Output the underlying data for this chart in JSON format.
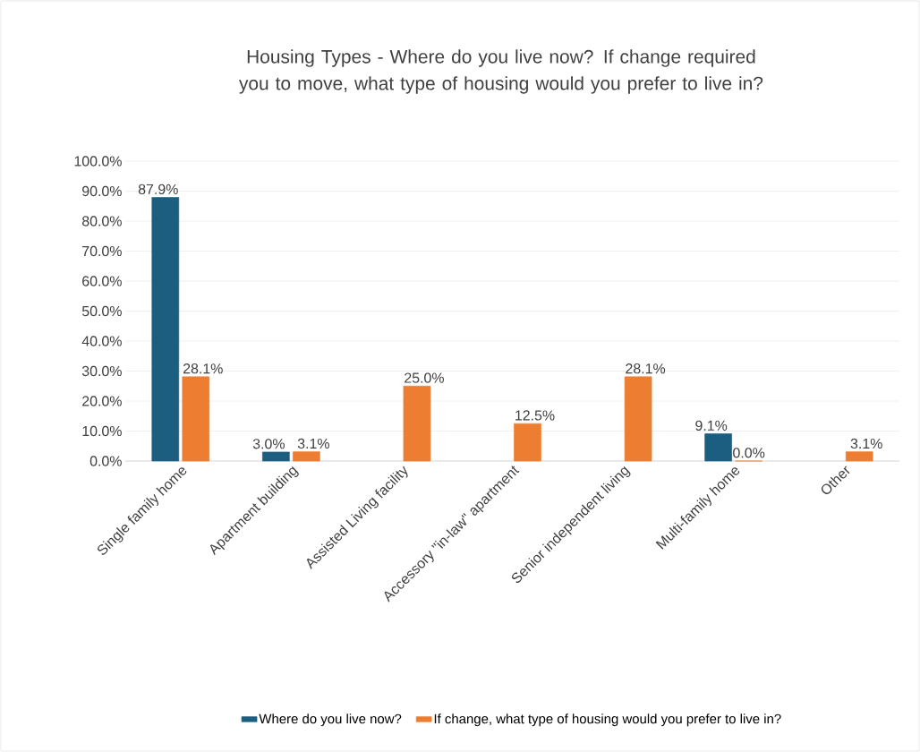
{
  "chart_data": {
    "type": "bar",
    "title": "Housing Types - Where do you live now? If change required you to move, what type of housing would you prefer to live in?",
    "categories": [
      "Single family home",
      "Apartment building",
      "Assisted Living facility",
      "Accessory \"in-law\" apartment",
      "Senior independent living",
      "Multi-family home",
      "Other"
    ],
    "series": [
      {
        "name": "Where do you  live now?",
        "color": "#1b5e80",
        "values": [
          87.9,
          3.0,
          null,
          null,
          null,
          9.1,
          null
        ],
        "value_labels": [
          "87.9%",
          "3.0%",
          null,
          null,
          null,
          "9.1%",
          null
        ]
      },
      {
        "name": "If change, what type of housing would you prefer to live in?",
        "color": "#ed7d31",
        "values": [
          28.1,
          3.1,
          25.0,
          12.5,
          28.1,
          0.0,
          3.1
        ],
        "value_labels": [
          "28.1%",
          "3.1%",
          "25.0%",
          "12.5%",
          "28.1%",
          "0.0%",
          "3.1%"
        ]
      }
    ],
    "ylim": [
      0,
      100
    ],
    "yticks": [
      {
        "value": 0,
        "label": "0.0%"
      },
      {
        "value": 10,
        "label": "10.0%"
      },
      {
        "value": 20,
        "label": "20.0%"
      },
      {
        "value": 30,
        "label": "30.0%"
      },
      {
        "value": 40,
        "label": "40.0%"
      },
      {
        "value": 50,
        "label": "50.0%"
      },
      {
        "value": 60,
        "label": "60.0%"
      },
      {
        "value": 70,
        "label": "70.0%"
      },
      {
        "value": 80,
        "label": "80.0%"
      },
      {
        "value": 90,
        "label": "90.0%"
      },
      {
        "value": 100,
        "label": "100.0%"
      }
    ],
    "grid": "y",
    "legend": "bottom"
  }
}
